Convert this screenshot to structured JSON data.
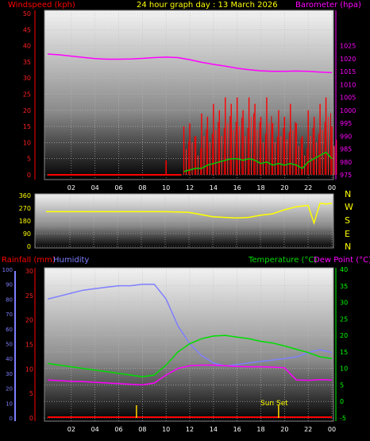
{
  "header": {
    "left": "Windspeed (kph)",
    "center": "24 hour graph day : 13 March 2026",
    "right": "Barometer (hpa)"
  },
  "middle": {
    "compass": [
      "N",
      "W",
      "S",
      "E",
      "N"
    ]
  },
  "bottom_header": {
    "rainfall": "Rainfall (mm)",
    "humidity": "Humidity",
    "temperature": "Temperature (°C)",
    "dewpoint": "Dew Point (°C)"
  },
  "annotation": {
    "sunset": "Sun Set"
  },
  "colors": {
    "wind": "#ff0000",
    "gust_fill": "#ff0000",
    "avg_wind": "#00cc00",
    "barometer": "#ff00ff",
    "direction": "#ffff00",
    "rain": "#ffd400",
    "humidity": "#7f7fff",
    "temperature": "#00dd00",
    "dewpoint": "#ff00ff",
    "axis_green": "#00ff00",
    "text_yellow": "#ffff00"
  },
  "chart_data": [
    {
      "type": "line",
      "name": "wind-barometer",
      "x_ticks": [
        "02",
        "04",
        "06",
        "08",
        "10",
        "12",
        "14",
        "16",
        "18",
        "20",
        "22",
        "00"
      ],
      "y_left": {
        "ticks": [
          0,
          5,
          10,
          15,
          20,
          25,
          30,
          35,
          40,
          45,
          50
        ],
        "range": [
          0,
          50
        ]
      },
      "y_right": {
        "ticks": [
          975,
          980,
          985,
          990,
          995,
          1000,
          1005,
          1010,
          1015,
          1020,
          1025
        ],
        "range": [
          973,
          1027
        ]
      },
      "barometer": {
        "x": [
          0,
          1,
          2,
          3,
          4,
          5,
          6,
          7,
          8,
          9,
          10,
          11,
          12,
          13,
          14,
          15,
          16,
          17,
          18,
          19,
          20,
          21,
          22,
          23,
          24
        ],
        "y": [
          1021.8,
          1021.5,
          1021.0,
          1020.5,
          1020.0,
          1019.8,
          1019.8,
          1019.9,
          1020.1,
          1020.4,
          1020.6,
          1020.4,
          1019.6,
          1018.6,
          1017.8,
          1017.1,
          1016.3,
          1015.7,
          1015.3,
          1015.1,
          1015.1,
          1015.2,
          1015.1,
          1014.8,
          1014.6
        ]
      },
      "wind": {
        "gust_start": 11.3,
        "spike_10": 4.5,
        "x": [
          11.5,
          12,
          12.5,
          13,
          13.5,
          14,
          14.5,
          15,
          15.5,
          16,
          16.5,
          17,
          17.5,
          18,
          18.5,
          19,
          19.5,
          20,
          20.5,
          21,
          21.5,
          22,
          22.5,
          23,
          23.5,
          24
        ],
        "gust": [
          15,
          16,
          12,
          19,
          18,
          22,
          20,
          24,
          22,
          24,
          20,
          24,
          22,
          18,
          24,
          16,
          20,
          18,
          22,
          16,
          12,
          20,
          18,
          22,
          24,
          15
        ],
        "wind": [
          8,
          10,
          6,
          12,
          10,
          14,
          12,
          16,
          14,
          15,
          12,
          18,
          14,
          10,
          16,
          10,
          12,
          11,
          14,
          9,
          6,
          12,
          10,
          14,
          18,
          9
        ],
        "avg": [
          1,
          1.5,
          2,
          2,
          3,
          3.5,
          4,
          4.5,
          5,
          5,
          4.5,
          5,
          4.5,
          3.5,
          4,
          3,
          3.5,
          3,
          3.5,
          3,
          2,
          4,
          5,
          6,
          7,
          5
        ]
      }
    },
    {
      "type": "line",
      "name": "wind-direction",
      "y_left": {
        "ticks": [
          0,
          90,
          180,
          270,
          360
        ],
        "range": [
          0,
          360
        ]
      },
      "direction": {
        "x": [
          0,
          2,
          4,
          6,
          8,
          10,
          11,
          12,
          13,
          14,
          15,
          16,
          17,
          18,
          19,
          20,
          21,
          22,
          22.5,
          23,
          23.5,
          24
        ],
        "y": [
          245,
          245,
          245,
          245,
          245,
          245,
          243,
          240,
          225,
          210,
          205,
          200,
          205,
          220,
          230,
          258,
          280,
          290,
          165,
          305,
          300,
          305
        ]
      }
    },
    {
      "type": "line",
      "name": "temp-humidity",
      "x_ticks": [
        "02",
        "04",
        "06",
        "08",
        "10",
        "12",
        "14",
        "16",
        "18",
        "20",
        "22",
        "00"
      ],
      "y_humidity": {
        "ticks": [
          0,
          10,
          20,
          30,
          40,
          50,
          60,
          70,
          80,
          90,
          100
        ],
        "range": [
          0,
          100
        ]
      },
      "y_rain": {
        "ticks": [
          0,
          5,
          10,
          15,
          20,
          25,
          30
        ],
        "range": [
          0,
          30
        ]
      },
      "y_temp": {
        "ticks": [
          -5,
          0,
          5,
          10,
          15,
          20,
          25,
          30,
          35,
          40
        ],
        "range": [
          -5,
          40
        ]
      },
      "humidity": {
        "x": [
          0,
          1,
          2,
          3,
          4,
          5,
          6,
          7,
          8,
          9,
          10,
          11,
          12,
          13,
          14,
          15,
          16,
          17,
          18,
          19,
          20,
          21,
          22,
          23,
          24
        ],
        "y": [
          80,
          82,
          84,
          86,
          87,
          88,
          89,
          89,
          90,
          90,
          80,
          62,
          50,
          42,
          37,
          35,
          36,
          37,
          38,
          39,
          40,
          41,
          44,
          46,
          44
        ]
      },
      "temperature": {
        "x": [
          0,
          1,
          2,
          3,
          4,
          5,
          6,
          7,
          8,
          9,
          10,
          11,
          12,
          13,
          14,
          15,
          16,
          17,
          18,
          19,
          20,
          21,
          22,
          23,
          24
        ],
        "y": [
          11.5,
          11,
          10.5,
          10,
          9.5,
          9,
          8.5,
          8,
          7.5,
          8,
          11,
          15,
          17.5,
          19,
          19.8,
          20,
          19.5,
          19,
          18.2,
          17.7,
          16.8,
          15.8,
          14.8,
          13.5,
          13
        ]
      },
      "dewpoint": {
        "x": [
          0,
          1,
          2,
          3,
          4,
          5,
          6,
          7,
          8,
          9,
          10,
          11,
          12,
          13,
          14,
          15,
          16,
          17,
          18,
          19,
          20,
          21,
          22,
          23,
          24
        ],
        "y": [
          6.5,
          6.3,
          6.1,
          6,
          5.8,
          5.6,
          5.4,
          5.2,
          5,
          5.6,
          8,
          10,
          10.8,
          11,
          11,
          10.8,
          10.6,
          10.5,
          10.5,
          10.4,
          10.2,
          6.5,
          6.4,
          6.6,
          6.5
        ]
      },
      "rain_marks": [
        7.5,
        19.5
      ],
      "sunset_hour": 19.5
    }
  ]
}
